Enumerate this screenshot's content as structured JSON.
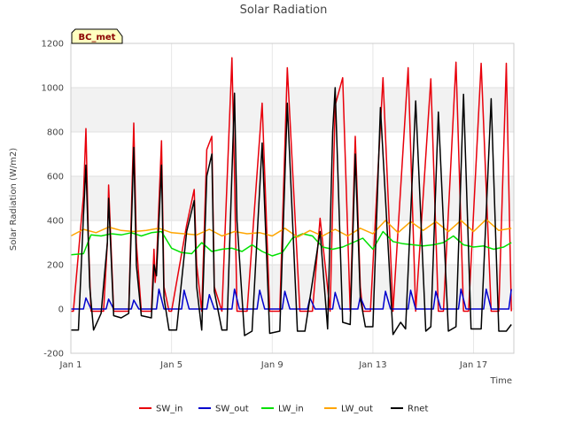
{
  "chart_data": {
    "type": "line",
    "title": "Solar Radiation",
    "xlabel": "Time",
    "ylabel": "Solar Radiation (W/m2)",
    "badge": "BC_met",
    "xlim": [
      1,
      18.6
    ],
    "ylim": [
      -200,
      1200
    ],
    "x_ticks": [
      {
        "value": 1,
        "label": "Jan 1"
      },
      {
        "value": 5,
        "label": "Jan 5"
      },
      {
        "value": 9,
        "label": "Jan 9"
      },
      {
        "value": 13,
        "label": "Jan 13"
      },
      {
        "value": 17,
        "label": "Jan 17"
      }
    ],
    "y_ticks": [
      -200,
      0,
      200,
      400,
      600,
      800,
      1000,
      1200
    ],
    "grid": true,
    "legend_position": "bottom",
    "series": [
      {
        "name": "SW_in",
        "color": "#e8000b",
        "x": [
          1.0,
          1.1,
          1.5,
          1.6,
          1.7,
          1.8,
          2.0,
          2.3,
          2.45,
          2.5,
          2.7,
          3.0,
          3.3,
          3.5,
          3.6,
          3.8,
          4.2,
          4.3,
          4.35,
          4.4,
          4.6,
          4.7,
          4.9,
          5.0,
          5.6,
          5.9,
          6.0,
          6.2,
          6.4,
          6.6,
          6.7,
          7.0,
          7.4,
          7.5,
          7.6,
          8.0,
          8.6,
          8.9,
          9.3,
          9.6,
          10.1,
          10.6,
          10.9,
          11.3,
          11.5,
          11.8,
          12.1,
          12.3,
          12.5,
          12.6,
          12.9,
          13.4,
          13.8,
          14.4,
          14.7,
          15.3,
          15.6,
          15.8,
          16.3,
          16.6,
          16.8,
          17.3,
          17.7,
          18.0,
          18.3,
          18.5
        ],
        "y": [
          -10,
          -10,
          510,
          815,
          300,
          -10,
          -10,
          -10,
          300,
          560,
          -10,
          -10,
          -10,
          840,
          300,
          -10,
          -10,
          270,
          120,
          200,
          760,
          100,
          -10,
          -10,
          380,
          540,
          200,
          -10,
          720,
          780,
          100,
          -10,
          1135,
          600,
          -10,
          -10,
          930,
          -10,
          -10,
          1090,
          -10,
          -10,
          410,
          -10,
          920,
          1045,
          -10,
          780,
          100,
          -10,
          -10,
          1045,
          -10,
          1090,
          -10,
          1040,
          -10,
          -10,
          1115,
          -10,
          -10,
          1110,
          -10,
          -10,
          1110,
          -10
        ]
      },
      {
        "name": "SW_out",
        "color": "#0000cd",
        "x": [
          1.0,
          1.5,
          1.6,
          1.8,
          2.4,
          2.5,
          2.7,
          3.4,
          3.5,
          3.7,
          4.4,
          4.5,
          4.7,
          5.4,
          5.5,
          5.7,
          6.4,
          6.5,
          6.7,
          7.4,
          7.5,
          7.7,
          8.4,
          8.5,
          8.7,
          9.4,
          9.5,
          9.7,
          10.4,
          10.5,
          10.7,
          11.4,
          11.5,
          11.7,
          12.4,
          12.5,
          12.7,
          13.4,
          13.5,
          13.7,
          14.4,
          14.5,
          14.7,
          15.4,
          15.5,
          15.7,
          16.4,
          16.5,
          16.7,
          17.4,
          17.5,
          17.7,
          18.4,
          18.5
        ],
        "y": [
          0,
          0,
          50,
          0,
          0,
          45,
          0,
          0,
          40,
          0,
          0,
          90,
          0,
          0,
          85,
          0,
          0,
          65,
          0,
          0,
          90,
          0,
          0,
          85,
          0,
          0,
          80,
          0,
          0,
          50,
          0,
          0,
          75,
          0,
          0,
          55,
          0,
          0,
          80,
          0,
          0,
          85,
          0,
          0,
          80,
          0,
          0,
          90,
          0,
          0,
          90,
          0,
          0,
          90
        ]
      },
      {
        "name": "LW_in",
        "color": "#00e000",
        "x": [
          1.0,
          1.5,
          1.8,
          2.2,
          2.6,
          3.0,
          3.4,
          3.8,
          4.2,
          4.6,
          5.0,
          5.4,
          5.8,
          6.2,
          6.6,
          7.0,
          7.4,
          7.8,
          8.2,
          8.6,
          9.0,
          9.4,
          9.8,
          10.2,
          10.6,
          11.0,
          11.4,
          11.8,
          12.2,
          12.6,
          13.0,
          13.4,
          13.8,
          14.2,
          14.6,
          15.0,
          15.4,
          15.8,
          16.2,
          16.6,
          17.0,
          17.4,
          17.8,
          18.2,
          18.5
        ],
        "y": [
          245,
          250,
          335,
          330,
          340,
          335,
          345,
          330,
          345,
          350,
          275,
          255,
          250,
          300,
          260,
          270,
          275,
          260,
          290,
          260,
          240,
          255,
          320,
          340,
          330,
          280,
          270,
          280,
          300,
          320,
          270,
          350,
          305,
          295,
          290,
          285,
          290,
          300,
          330,
          290,
          280,
          285,
          270,
          280,
          300
        ]
      },
      {
        "name": "LW_out",
        "color": "#ffa500",
        "x": [
          1.0,
          1.5,
          2.0,
          2.5,
          3.0,
          3.5,
          4.0,
          4.5,
          5.0,
          5.5,
          6.0,
          6.5,
          7.0,
          7.5,
          8.0,
          8.5,
          9.0,
          9.5,
          10.0,
          10.5,
          11.0,
          11.5,
          12.0,
          12.5,
          13.0,
          13.5,
          14.0,
          14.5,
          15.0,
          15.5,
          16.0,
          16.5,
          17.0,
          17.5,
          18.0,
          18.5
        ],
        "y": [
          330,
          360,
          345,
          370,
          355,
          350,
          355,
          365,
          345,
          340,
          335,
          360,
          330,
          350,
          340,
          345,
          330,
          365,
          325,
          355,
          330,
          360,
          330,
          365,
          340,
          400,
          345,
          395,
          355,
          395,
          350,
          400,
          350,
          405,
          355,
          365
        ]
      },
      {
        "name": "Rnet",
        "color": "#000000",
        "x": [
          1.0,
          1.3,
          1.5,
          1.6,
          1.75,
          1.9,
          2.2,
          2.45,
          2.5,
          2.7,
          3.0,
          3.3,
          3.5,
          3.6,
          3.8,
          4.2,
          4.3,
          4.4,
          4.6,
          4.7,
          4.9,
          5.2,
          5.6,
          5.9,
          6.0,
          6.2,
          6.4,
          6.6,
          6.7,
          7.0,
          7.2,
          7.5,
          7.6,
          7.9,
          8.2,
          8.6,
          8.9,
          9.3,
          9.6,
          10.0,
          10.3,
          10.9,
          11.2,
          11.4,
          11.5,
          11.8,
          12.1,
          12.3,
          12.5,
          12.7,
          13.0,
          13.3,
          13.8,
          14.1,
          14.3,
          14.7,
          15.1,
          15.3,
          15.6,
          16.0,
          16.3,
          16.6,
          16.9,
          17.3,
          17.7,
          18.0,
          18.3,
          18.5
        ],
        "y": [
          -95,
          -95,
          420,
          650,
          100,
          -95,
          -20,
          300,
          500,
          -30,
          -40,
          -20,
          730,
          200,
          -30,
          -40,
          200,
          150,
          650,
          50,
          -95,
          -95,
          350,
          490,
          100,
          -95,
          600,
          700,
          80,
          -95,
          -95,
          975,
          400,
          -120,
          -100,
          750,
          -110,
          -100,
          930,
          -100,
          -100,
          350,
          -90,
          800,
          1000,
          -60,
          -70,
          700,
          50,
          -80,
          -80,
          910,
          -115,
          -60,
          -90,
          940,
          -100,
          -80,
          890,
          -100,
          -80,
          970,
          -90,
          -90,
          950,
          -100,
          -100,
          -70
        ]
      }
    ]
  }
}
